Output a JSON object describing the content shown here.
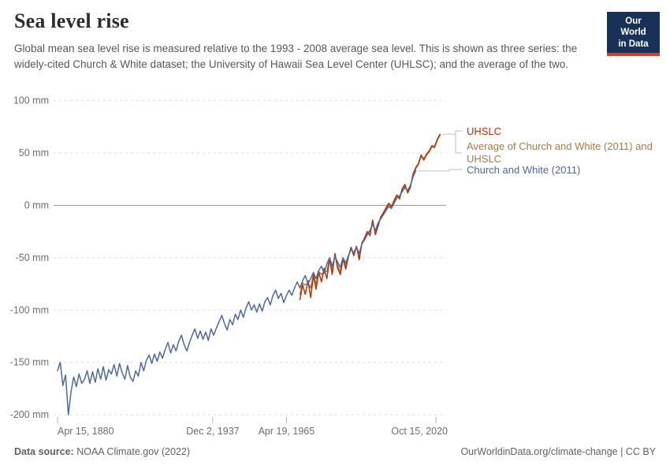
{
  "header": {
    "title": "Sea level rise",
    "subtitle": "Global mean sea level rise is measured relative to the 1993 - 2008 average sea level. This is shown as three series: the widely-cited Church & White dataset; the University of Hawaii Sea Level Center (UHLSC); and the average of the two."
  },
  "logo": {
    "line1": "Our World",
    "line2": "in Data"
  },
  "legend": {
    "items": [
      {
        "label": "UHSLC",
        "color": "#B13507"
      },
      {
        "label": "Average of Church and White (2011) and UHSLC",
        "color": "#B0793C"
      },
      {
        "label": "Church and White (2011)",
        "color": "#4C6A9C"
      }
    ]
  },
  "chart_data": {
    "type": "line",
    "title": "Sea level rise",
    "unit": "mm",
    "grid": true,
    "legend_position": "right",
    "x_axis": {
      "ticks": [
        {
          "label": "Apr 15, 1880",
          "year": 1880.29
        },
        {
          "label": "Dec 2, 1937",
          "year": 1937.92
        },
        {
          "label": "Apr 19, 1965",
          "year": 1965.3
        },
        {
          "label": "Oct 15, 2020",
          "year": 2020.79
        }
      ],
      "range": [
        1880.29,
        2022.3
      ]
    },
    "y_axis": {
      "ticks": [
        {
          "label": "100 mm",
          "value": 100
        },
        {
          "label": "50 mm",
          "value": 50
        },
        {
          "label": "0 mm",
          "value": 0
        },
        {
          "label": "-50 mm",
          "value": -50
        },
        {
          "label": "-100 mm",
          "value": -100
        },
        {
          "label": "-150 mm",
          "value": -150
        },
        {
          "label": "-200 mm",
          "value": -200
        }
      ],
      "range": [
        -210,
        105
      ]
    },
    "series": [
      {
        "name": "Average of Church and White (2011) and UHSLC",
        "color": "#B0793C",
        "start_year": 1970.3,
        "step": 1,
        "values": [
          -85,
          -74,
          -76,
          -74,
          -79,
          -66,
          -75,
          -63,
          -66,
          -63,
          -63,
          -51,
          -62,
          -48,
          -57,
          -63,
          -51,
          -58,
          -49,
          -41,
          -47,
          -40,
          -49,
          -37,
          -32,
          -27,
          -27,
          -16,
          -26,
          -19,
          -12,
          -8,
          -4,
          1,
          -2,
          4,
          9,
          8,
          15,
          19,
          13,
          18,
          29,
          35,
          39,
          47,
          43,
          48,
          51,
          56,
          55,
          62,
          67
        ]
      },
      {
        "name": "UHSLC",
        "color": "#B13507",
        "start_year": 1970.3,
        "step": 1,
        "values": [
          -90,
          -76,
          -85,
          -72,
          -88,
          -67,
          -80,
          -64,
          -73,
          -60,
          -70,
          -51,
          -66,
          -46,
          -60,
          -66,
          -51,
          -61,
          -49,
          -40,
          -48,
          -39,
          -52,
          -36,
          -31,
          -25,
          -29,
          -14,
          -28,
          -20,
          -11,
          -7,
          -2,
          2,
          -1,
          5,
          10,
          6,
          16,
          20,
          12,
          17,
          30,
          36,
          40,
          48,
          44,
          49,
          52,
          57,
          56,
          63,
          68
        ]
      },
      {
        "name": "Church and White (2011)",
        "color": "#4C6A9C",
        "start_year": 1880.29,
        "step": 1,
        "values": [
          -158,
          -150,
          -172,
          -162,
          -200,
          -178,
          -164,
          -173,
          -161,
          -170,
          -166,
          -158,
          -170,
          -159,
          -169,
          -156,
          -166,
          -154,
          -167,
          -157,
          -161,
          -152,
          -163,
          -151,
          -160,
          -166,
          -153,
          -164,
          -168,
          -158,
          -163,
          -150,
          -158,
          -148,
          -143,
          -151,
          -142,
          -149,
          -140,
          -146,
          -137,
          -131,
          -141,
          -133,
          -139,
          -130,
          -124,
          -133,
          -139,
          -131,
          -124,
          -118,
          -127,
          -120,
          -128,
          -121,
          -129,
          -118,
          -124,
          -117,
          -111,
          -105,
          -113,
          -119,
          -109,
          -114,
          -104,
          -109,
          -100,
          -107,
          -98,
          -92,
          -100,
          -95,
          -102,
          -94,
          -101,
          -92,
          -88,
          -95,
          -86,
          -81,
          -89,
          -84,
          -93,
          -86,
          -81,
          -86,
          -79,
          -73,
          -79,
          -72,
          -67,
          -75,
          -70,
          -64,
          -70,
          -62,
          -58,
          -65,
          -56,
          -50,
          -58,
          -49,
          -54,
          -59,
          -50,
          -55,
          -48,
          -42,
          -45,
          -40,
          -46,
          -37,
          -33,
          -28,
          -24,
          -18,
          -24,
          -17,
          -13,
          -9,
          -5,
          -1,
          -3,
          2,
          7,
          9,
          13,
          17,
          14,
          19,
          27,
          33
        ]
      }
    ]
  },
  "footer": {
    "source_label": "Data source:",
    "source_value": " NOAA Climate.gov (2022)",
    "credit": "OurWorldinData.org/climate-change | CC BY"
  }
}
